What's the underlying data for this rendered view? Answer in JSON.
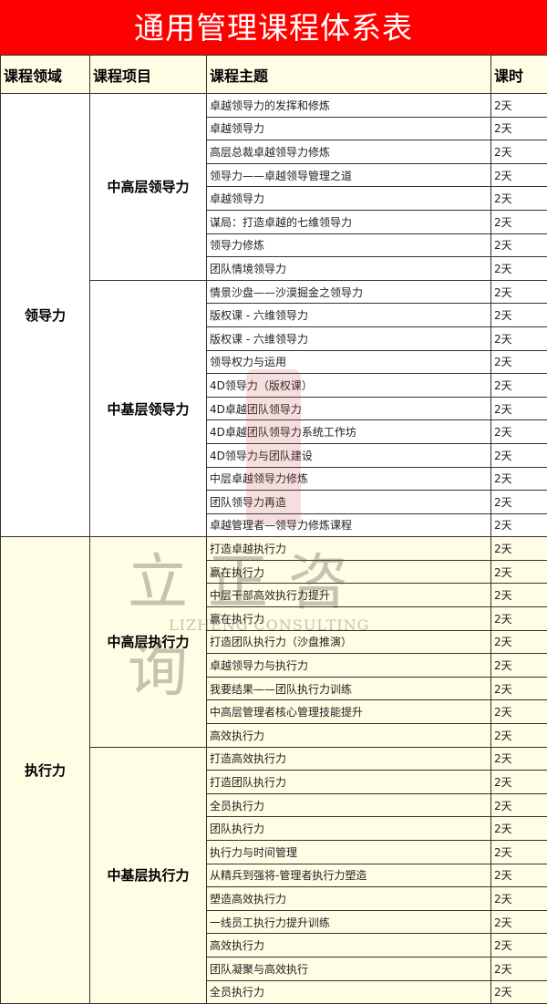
{
  "title": "通用管理课程体系表",
  "headers": [
    "课程领域",
    "课程项目",
    "课程主题",
    "课时"
  ],
  "watermark": {
    "logo_text": "立正咨询",
    "subtitle": "LIZHENG CONSULTING"
  },
  "colors": {
    "title_bg": "#ff0000",
    "header_bg": "#fffde3",
    "execution_bg": "#fffde3"
  },
  "domains": [
    {
      "name": "领导力",
      "projects": [
        {
          "name": "中高层领导力",
          "courses": [
            {
              "topic": "卓越领导力的发挥和修炼",
              "hours": "2天"
            },
            {
              "topic": "卓越领导力",
              "hours": "2天"
            },
            {
              "topic": "高层总裁卓越领导力修炼",
              "hours": "2天"
            },
            {
              "topic": "领导力——卓越领导管理之道",
              "hours": "2天"
            },
            {
              "topic": "卓越领导力",
              "hours": "2天"
            },
            {
              "topic": "谋局：打造卓越的七维领导力",
              "hours": "2天"
            },
            {
              "topic": "领导力修炼",
              "hours": "2天"
            },
            {
              "topic": "团队情境领导力",
              "hours": "2天"
            }
          ]
        },
        {
          "name": "中基层领导力",
          "courses": [
            {
              "topic": "情景沙盘——沙漠掘金之领导力",
              "hours": "2天"
            },
            {
              "topic": "版权课 - 六维领导力",
              "hours": "2天"
            },
            {
              "topic": "版权课 - 六维领导力",
              "hours": "2天"
            },
            {
              "topic": "领导权力与运用",
              "hours": "2天"
            },
            {
              "topic": "4D领导力（版权课）",
              "hours": "2天"
            },
            {
              "topic": "4D卓越团队领导力",
              "hours": "2天"
            },
            {
              "topic": "4D卓越团队领导力系统工作坊",
              "hours": "2天"
            },
            {
              "topic": "4D领导力与团队建设",
              "hours": "2天"
            },
            {
              "topic": "中层卓越领导力修炼",
              "hours": "2天"
            },
            {
              "topic": "团队领导力再造",
              "hours": "2天"
            },
            {
              "topic": "卓越管理者—领导力修炼课程",
              "hours": "2天"
            }
          ]
        }
      ]
    },
    {
      "name": "执行力",
      "projects": [
        {
          "name": "中高层执行力",
          "courses": [
            {
              "topic": "打造卓越执行力",
              "hours": "2天"
            },
            {
              "topic": "赢在执行力",
              "hours": "2天"
            },
            {
              "topic": "中层干部高效执行力提升",
              "hours": "2天"
            },
            {
              "topic": "赢在执行力",
              "hours": "2天"
            },
            {
              "topic": "打造团队执行力（沙盘推演）",
              "hours": "2天"
            },
            {
              "topic": "卓越领导力与执行力",
              "hours": "2天"
            },
            {
              "topic": "我要结果——团队执行力训练",
              "hours": "2天"
            },
            {
              "topic": "中高层管理者核心管理技能提升",
              "hours": "2天"
            },
            {
              "topic": "高效执行力",
              "hours": "2天"
            }
          ]
        },
        {
          "name": "中基层执行力",
          "courses": [
            {
              "topic": "打造高效执行力",
              "hours": "2天"
            },
            {
              "topic": "打造团队执行力",
              "hours": "2天"
            },
            {
              "topic": "全员执行力",
              "hours": "2天"
            },
            {
              "topic": "团队执行力",
              "hours": "2天"
            },
            {
              "topic": "执行力与时间管理",
              "hours": "2天"
            },
            {
              "topic": "从精兵到强将-管理者执行力塑造",
              "hours": "2天"
            },
            {
              "topic": "塑造高效执行力",
              "hours": "2天"
            },
            {
              "topic": "一线员工执行力提升训练",
              "hours": "2天"
            },
            {
              "topic": "高效执行力",
              "hours": "2天"
            },
            {
              "topic": "团队凝聚与高效执行",
              "hours": "2天"
            },
            {
              "topic": "全员执行力",
              "hours": "2天"
            }
          ]
        }
      ]
    }
  ]
}
